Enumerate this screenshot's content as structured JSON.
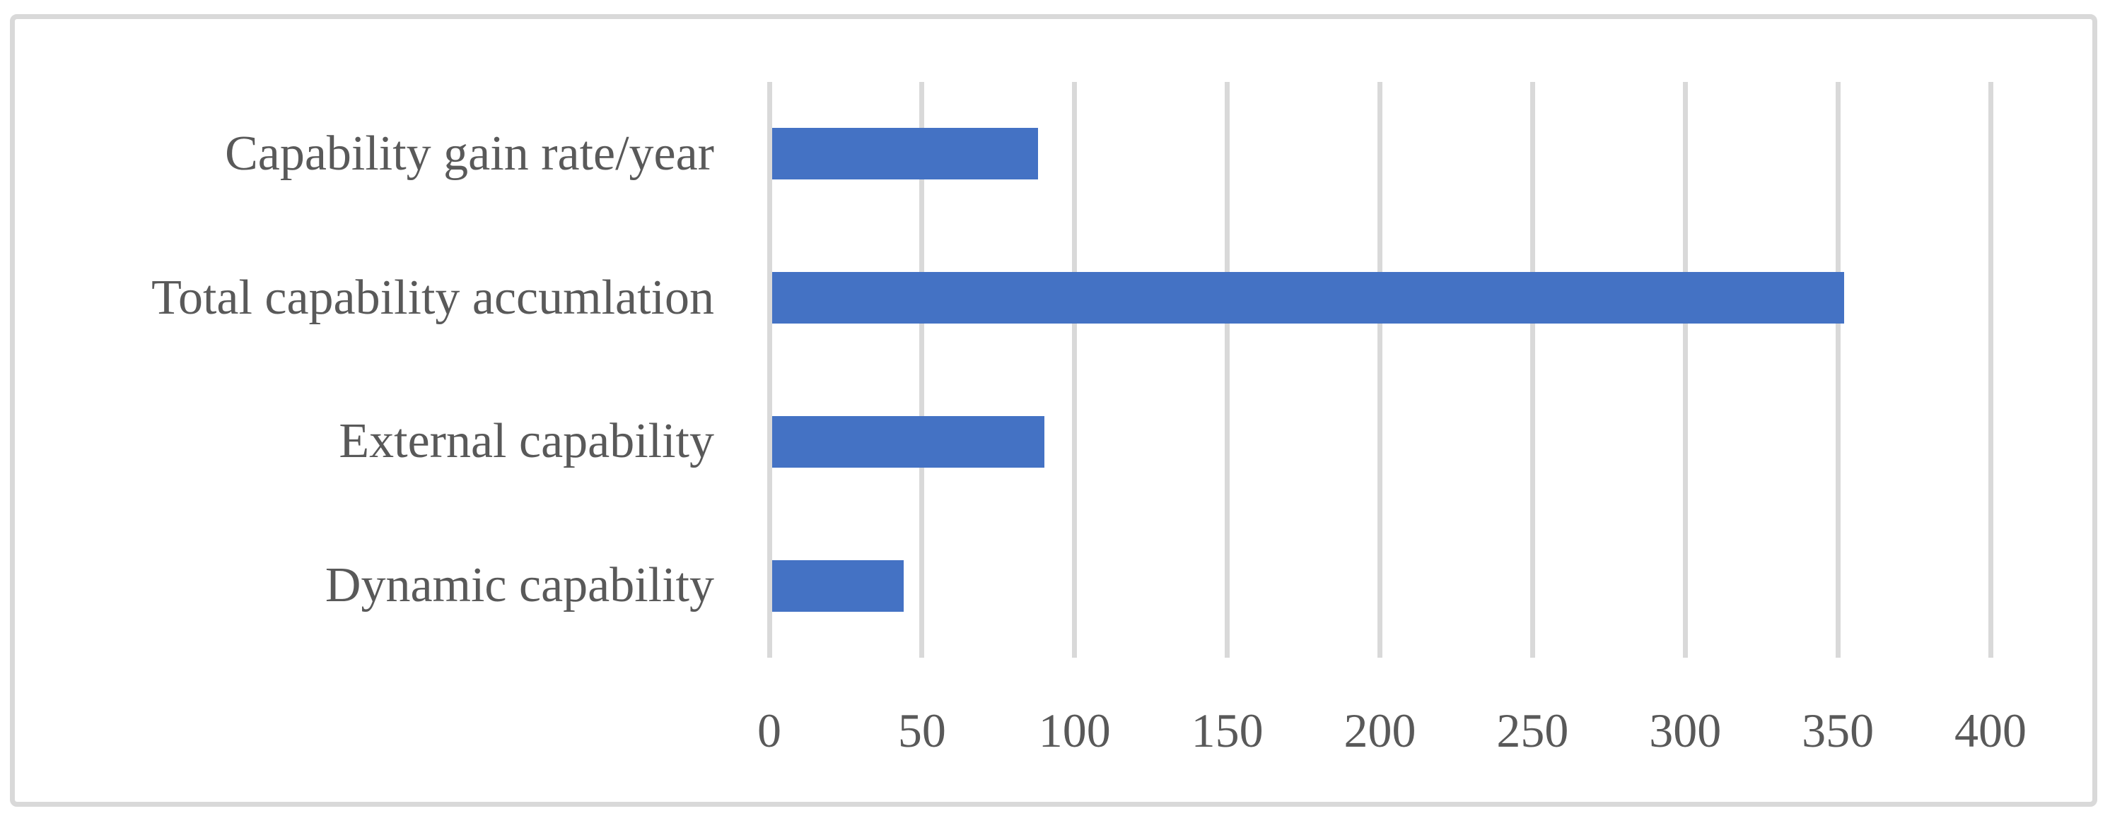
{
  "figure": {
    "background_color": "#ffffff",
    "frame_color": "#d9d9d9"
  },
  "chart_data": {
    "type": "bar",
    "orientation": "horizontal",
    "title": "",
    "xlabel": "",
    "ylabel": "",
    "categories": [
      "Capability gain rate/year",
      "Total capability accumlation",
      "External capability",
      "Dynamic capability"
    ],
    "values": [
      88,
      352,
      90,
      44
    ],
    "xlim": [
      0,
      400
    ],
    "xticks": [
      0,
      50,
      100,
      150,
      200,
      250,
      300,
      350,
      400
    ],
    "grid": "vertical-gridlines-on",
    "legend": "none",
    "bar_color": "#4472c4",
    "gridline_color": "#d9d9d9",
    "text_color": "#595959"
  }
}
